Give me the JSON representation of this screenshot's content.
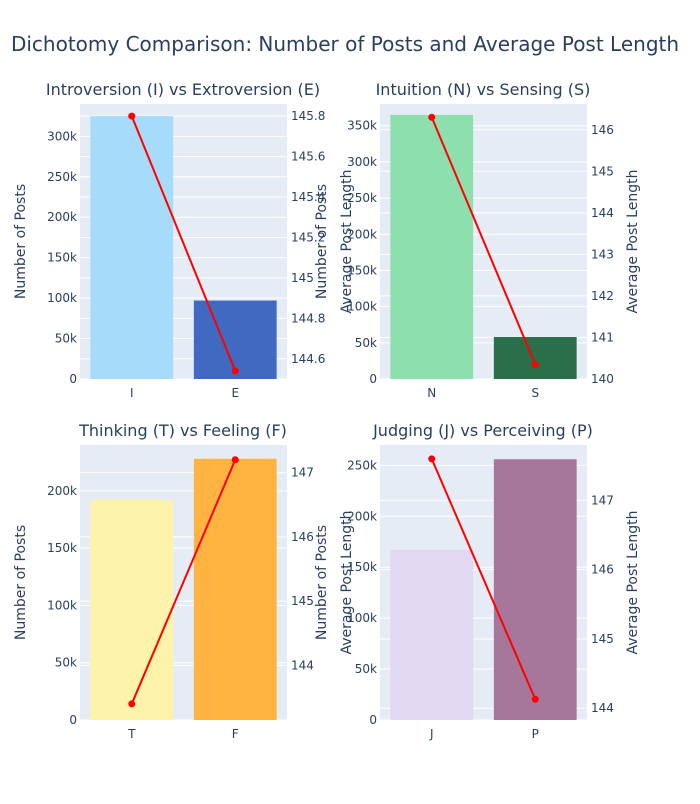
{
  "title": "Dichotomy Comparison: Number of Posts and Average Post Length",
  "colors": {
    "plot_bg": "#e5ecf6",
    "grid": "#ffffff",
    "text": "#2a3f5f",
    "line": "#ff0000"
  },
  "chart_data": [
    {
      "type": "bar",
      "title": "Introversion (I) vs Extroversion (E)",
      "categories": [
        "I",
        "E"
      ],
      "series": [
        {
          "values": [
            325000,
            97000
          ],
          "colors": [
            "#a6dcf9",
            "#4069c1"
          ]
        },
        {
          "type": "line",
          "values": [
            145.8,
            144.54
          ],
          "color": "#ff0000"
        }
      ],
      "ylabel": "Number of Posts",
      "y2label": "Number of Posts",
      "ylim": [
        0,
        340000
      ],
      "y2lim": [
        144.5,
        145.86
      ],
      "yticks": [
        0,
        50000,
        100000,
        150000,
        200000,
        250000,
        300000
      ],
      "yticklabels": [
        "0",
        "50k",
        "100k",
        "150k",
        "200k",
        "250k",
        "300k"
      ],
      "y2ticks": [
        144.6,
        144.8,
        145,
        145.2,
        145.4,
        145.6,
        145.8
      ],
      "y2ticklabels": [
        "144.6",
        "144.8",
        "145",
        "145.2",
        "145.4",
        "145.6",
        "145.8"
      ]
    },
    {
      "type": "bar",
      "title": "Intuition (N) vs Sensing (S)",
      "categories": [
        "N",
        "S"
      ],
      "series": [
        {
          "values": [
            365000,
            58000
          ],
          "colors": [
            "#8ddfad",
            "#2b6e4a"
          ]
        },
        {
          "type": "line",
          "values": [
            146.3,
            140.35
          ],
          "color": "#ff0000"
        }
      ],
      "ylabel": "Average Post Length",
      "y2label": "Average Post Length",
      "ylim": [
        0,
        380000
      ],
      "y2lim": [
        140,
        146.62
      ],
      "yticks": [
        0,
        50000,
        100000,
        150000,
        200000,
        250000,
        300000,
        350000
      ],
      "yticklabels": [
        "0",
        "50k",
        "100k",
        "150k",
        "200k",
        "250k",
        "300k",
        "350k"
      ],
      "y2ticks": [
        140,
        141,
        142,
        143,
        144,
        145,
        146
      ],
      "y2ticklabels": [
        "140",
        "141",
        "142",
        "143",
        "144",
        "145",
        "146"
      ]
    },
    {
      "type": "bar",
      "title": "Thinking (T) vs Feeling (F)",
      "categories": [
        "T",
        "F"
      ],
      "series": [
        {
          "values": [
            192000,
            228000
          ],
          "colors": [
            "#fef3aa",
            "#ffb441"
          ]
        },
        {
          "type": "line",
          "values": [
            143.4,
            147.2
          ],
          "color": "#ff0000"
        }
      ],
      "ylabel": "Number of Posts",
      "y2label": "Number of Posts",
      "ylim": [
        0,
        240000
      ],
      "y2lim": [
        143.15,
        147.43
      ],
      "yticks": [
        0,
        50000,
        100000,
        150000,
        200000
      ],
      "yticklabels": [
        "0",
        "50k",
        "100k",
        "150k",
        "200k"
      ],
      "y2ticks": [
        144,
        145,
        146,
        147
      ],
      "y2ticklabels": [
        "144",
        "145",
        "146",
        "147"
      ]
    },
    {
      "type": "bar",
      "title": "Judging (J) vs Perceiving (P)",
      "categories": [
        "J",
        "P"
      ],
      "series": [
        {
          "values": [
            167000,
            256000
          ],
          "colors": [
            "#e2d8f1",
            "#a7779b"
          ]
        },
        {
          "type": "line",
          "values": [
            147.6,
            144.13
          ],
          "color": "#ff0000"
        }
      ],
      "ylabel": "Average Post Length",
      "y2label": "Average Post Length",
      "ylim": [
        0,
        270000
      ],
      "y2lim": [
        143.83,
        147.8
      ],
      "yticks": [
        0,
        50000,
        100000,
        150000,
        200000,
        250000
      ],
      "yticklabels": [
        "0",
        "50k",
        "100k",
        "150k",
        "200k",
        "250k"
      ],
      "y2ticks": [
        144,
        145,
        146,
        147
      ],
      "y2ticklabels": [
        "144",
        "145",
        "146",
        "147"
      ]
    }
  ]
}
